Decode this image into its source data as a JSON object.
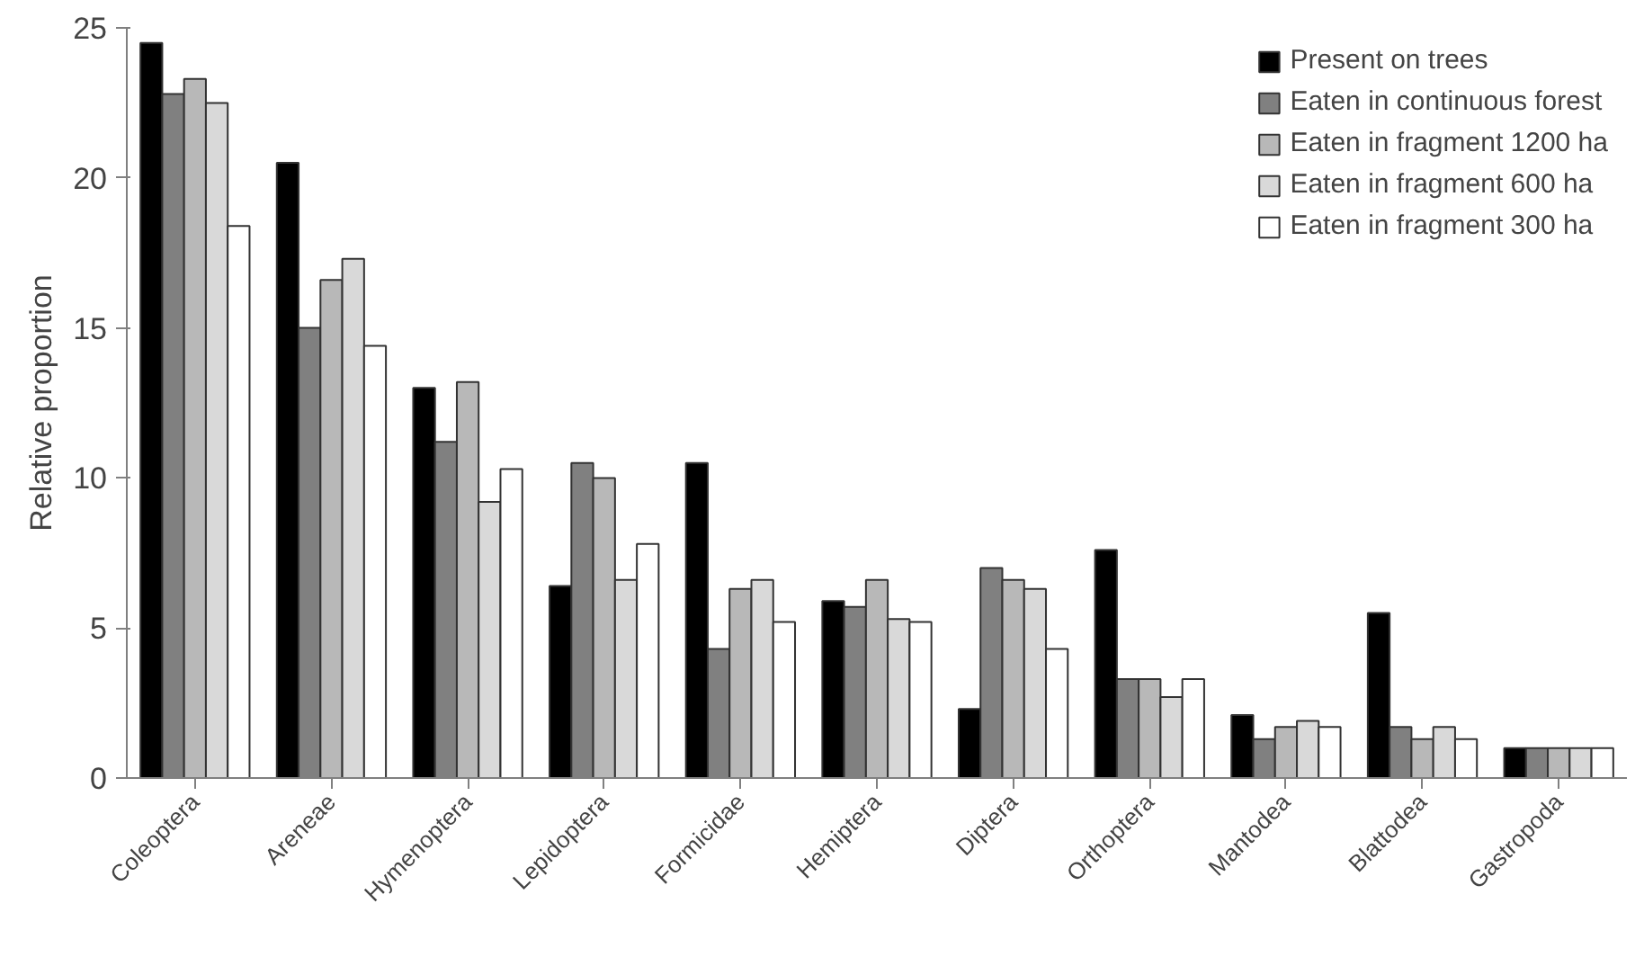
{
  "chart_data": {
    "type": "bar",
    "ylabel": "Relative proportion",
    "categories": [
      "Coleoptera",
      "Areneae",
      "Hymenoptera",
      "Lepidoptera",
      "Formicidae",
      "Hemiptera",
      "Diptera",
      "Orthoptera",
      "Mantodea",
      "Blattodea",
      "Gastropoda"
    ],
    "series": [
      {
        "name": "Present on trees",
        "color": "#000000",
        "values": [
          24.5,
          20.5,
          13.0,
          6.4,
          10.5,
          5.9,
          2.3,
          7.6,
          2.1,
          5.5,
          1.0
        ]
      },
      {
        "name": "Eaten in continuous forest",
        "color": "#808080",
        "values": [
          22.8,
          15.0,
          11.2,
          10.5,
          4.3,
          5.7,
          7.0,
          3.3,
          1.3,
          1.7,
          1.0
        ]
      },
      {
        "name": "Eaten in fragment 1200 ha",
        "color": "#b8b8b8",
        "values": [
          23.3,
          16.6,
          13.2,
          10.0,
          6.3,
          6.6,
          6.6,
          3.3,
          1.7,
          1.3,
          1.0
        ]
      },
      {
        "name": "Eaten in fragment 600 ha",
        "color": "#d9d9d9",
        "values": [
          22.5,
          17.3,
          9.2,
          6.6,
          6.6,
          5.3,
          6.3,
          2.7,
          1.9,
          1.7,
          1.0
        ]
      },
      {
        "name": "Eaten in fragment 300 ha",
        "color": "#ffffff",
        "values": [
          18.4,
          14.4,
          10.3,
          7.8,
          5.2,
          5.2,
          4.3,
          3.3,
          1.7,
          1.3,
          1.0
        ]
      }
    ],
    "ylim": [
      0,
      25
    ],
    "yticks": [
      0,
      5,
      10,
      15,
      20,
      25
    ],
    "grid": false,
    "legend": "top right"
  }
}
